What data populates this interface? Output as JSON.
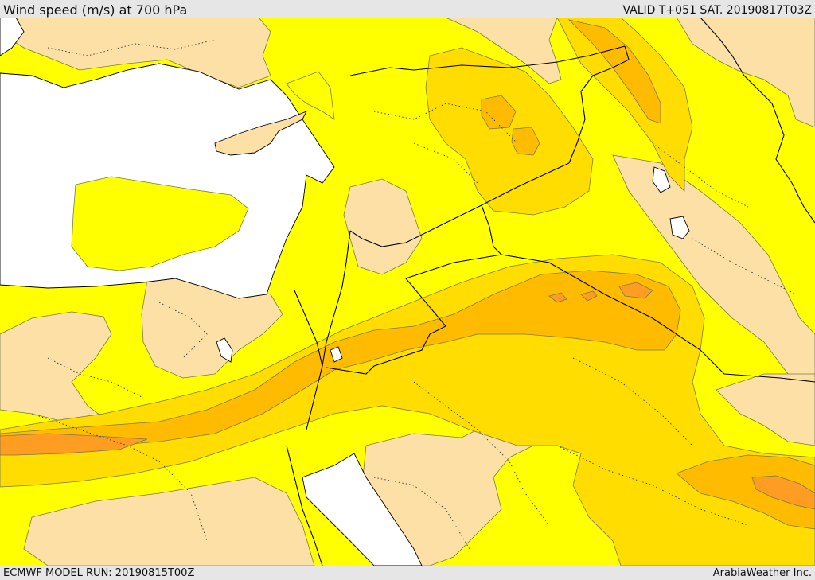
{
  "header": {
    "title": "Wind speed (m/s) at 700 hPa",
    "valid": "VALID T+051 SAT. 20190817T03Z"
  },
  "footer": {
    "model_run": "ECMWF MODEL RUN: 20190815T00Z",
    "credit": "ArabiaWeather Inc."
  },
  "map": {
    "colors": {
      "sea": "#ffffff",
      "calm_band": "#fde0a6",
      "band_1": "#ffff00",
      "band_2": "#ffdd00",
      "band_3": "#ffbb00",
      "band_4": "#ff9c22",
      "border": "#000000",
      "contour": "#6e6e3c"
    }
  }
}
